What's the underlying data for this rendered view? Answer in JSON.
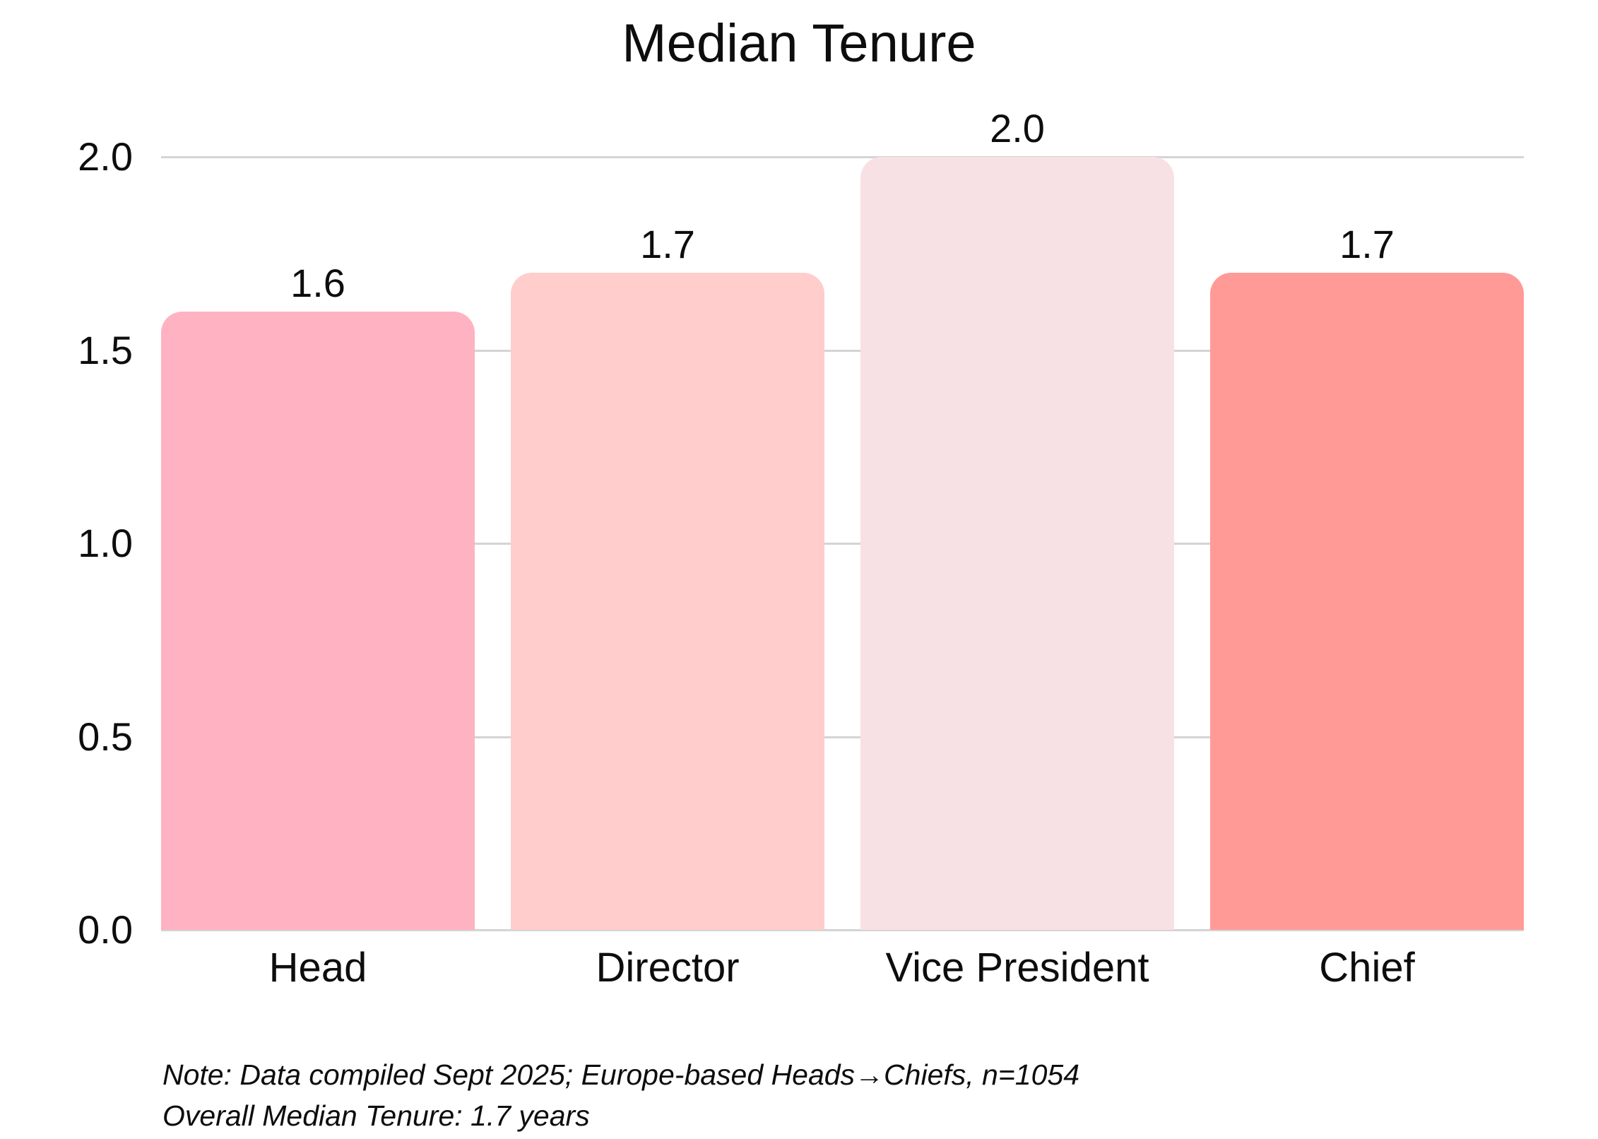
{
  "title": "Median Tenure",
  "note": {
    "line1": "Note: Data compiled Sept 2025; Europe-based Heads→Chiefs, n=1054",
    "line2": "Overall Median Tenure: 1.7 years"
  },
  "colors": {
    "background": "#FFFFFF",
    "text": "#0D0D0D",
    "gridline": "#D4D4D4",
    "bar_head": "#FFB2C2",
    "bar_director": "#FFCDCB",
    "bar_vice_president": "#F8E1E4",
    "bar_chief": "#FF9A97"
  },
  "chart_data": {
    "type": "bar",
    "title": "Median Tenure",
    "categories": [
      "Head",
      "Director",
      "Vice President",
      "Chief"
    ],
    "values": [
      1.6,
      1.7,
      2.0,
      1.7
    ],
    "value_labels": [
      "1.6",
      "1.7",
      "2.0",
      "1.7"
    ],
    "bar_colors": [
      "#FFB2C2",
      "#FFCDCB",
      "#F8E1E4",
      "#FF9A97"
    ],
    "xlabel": "",
    "ylabel": "",
    "ylim": [
      0.0,
      2.0
    ],
    "yticks": [
      "2.0",
      "1.5",
      "1.0",
      "0.5",
      "0.0"
    ],
    "grid": true,
    "legend": false,
    "annotations": [
      "Note: Data compiled Sept 2025; Europe-based Heads→Chiefs, n=1054",
      "Overall Median Tenure: 1.7 years"
    ]
  }
}
